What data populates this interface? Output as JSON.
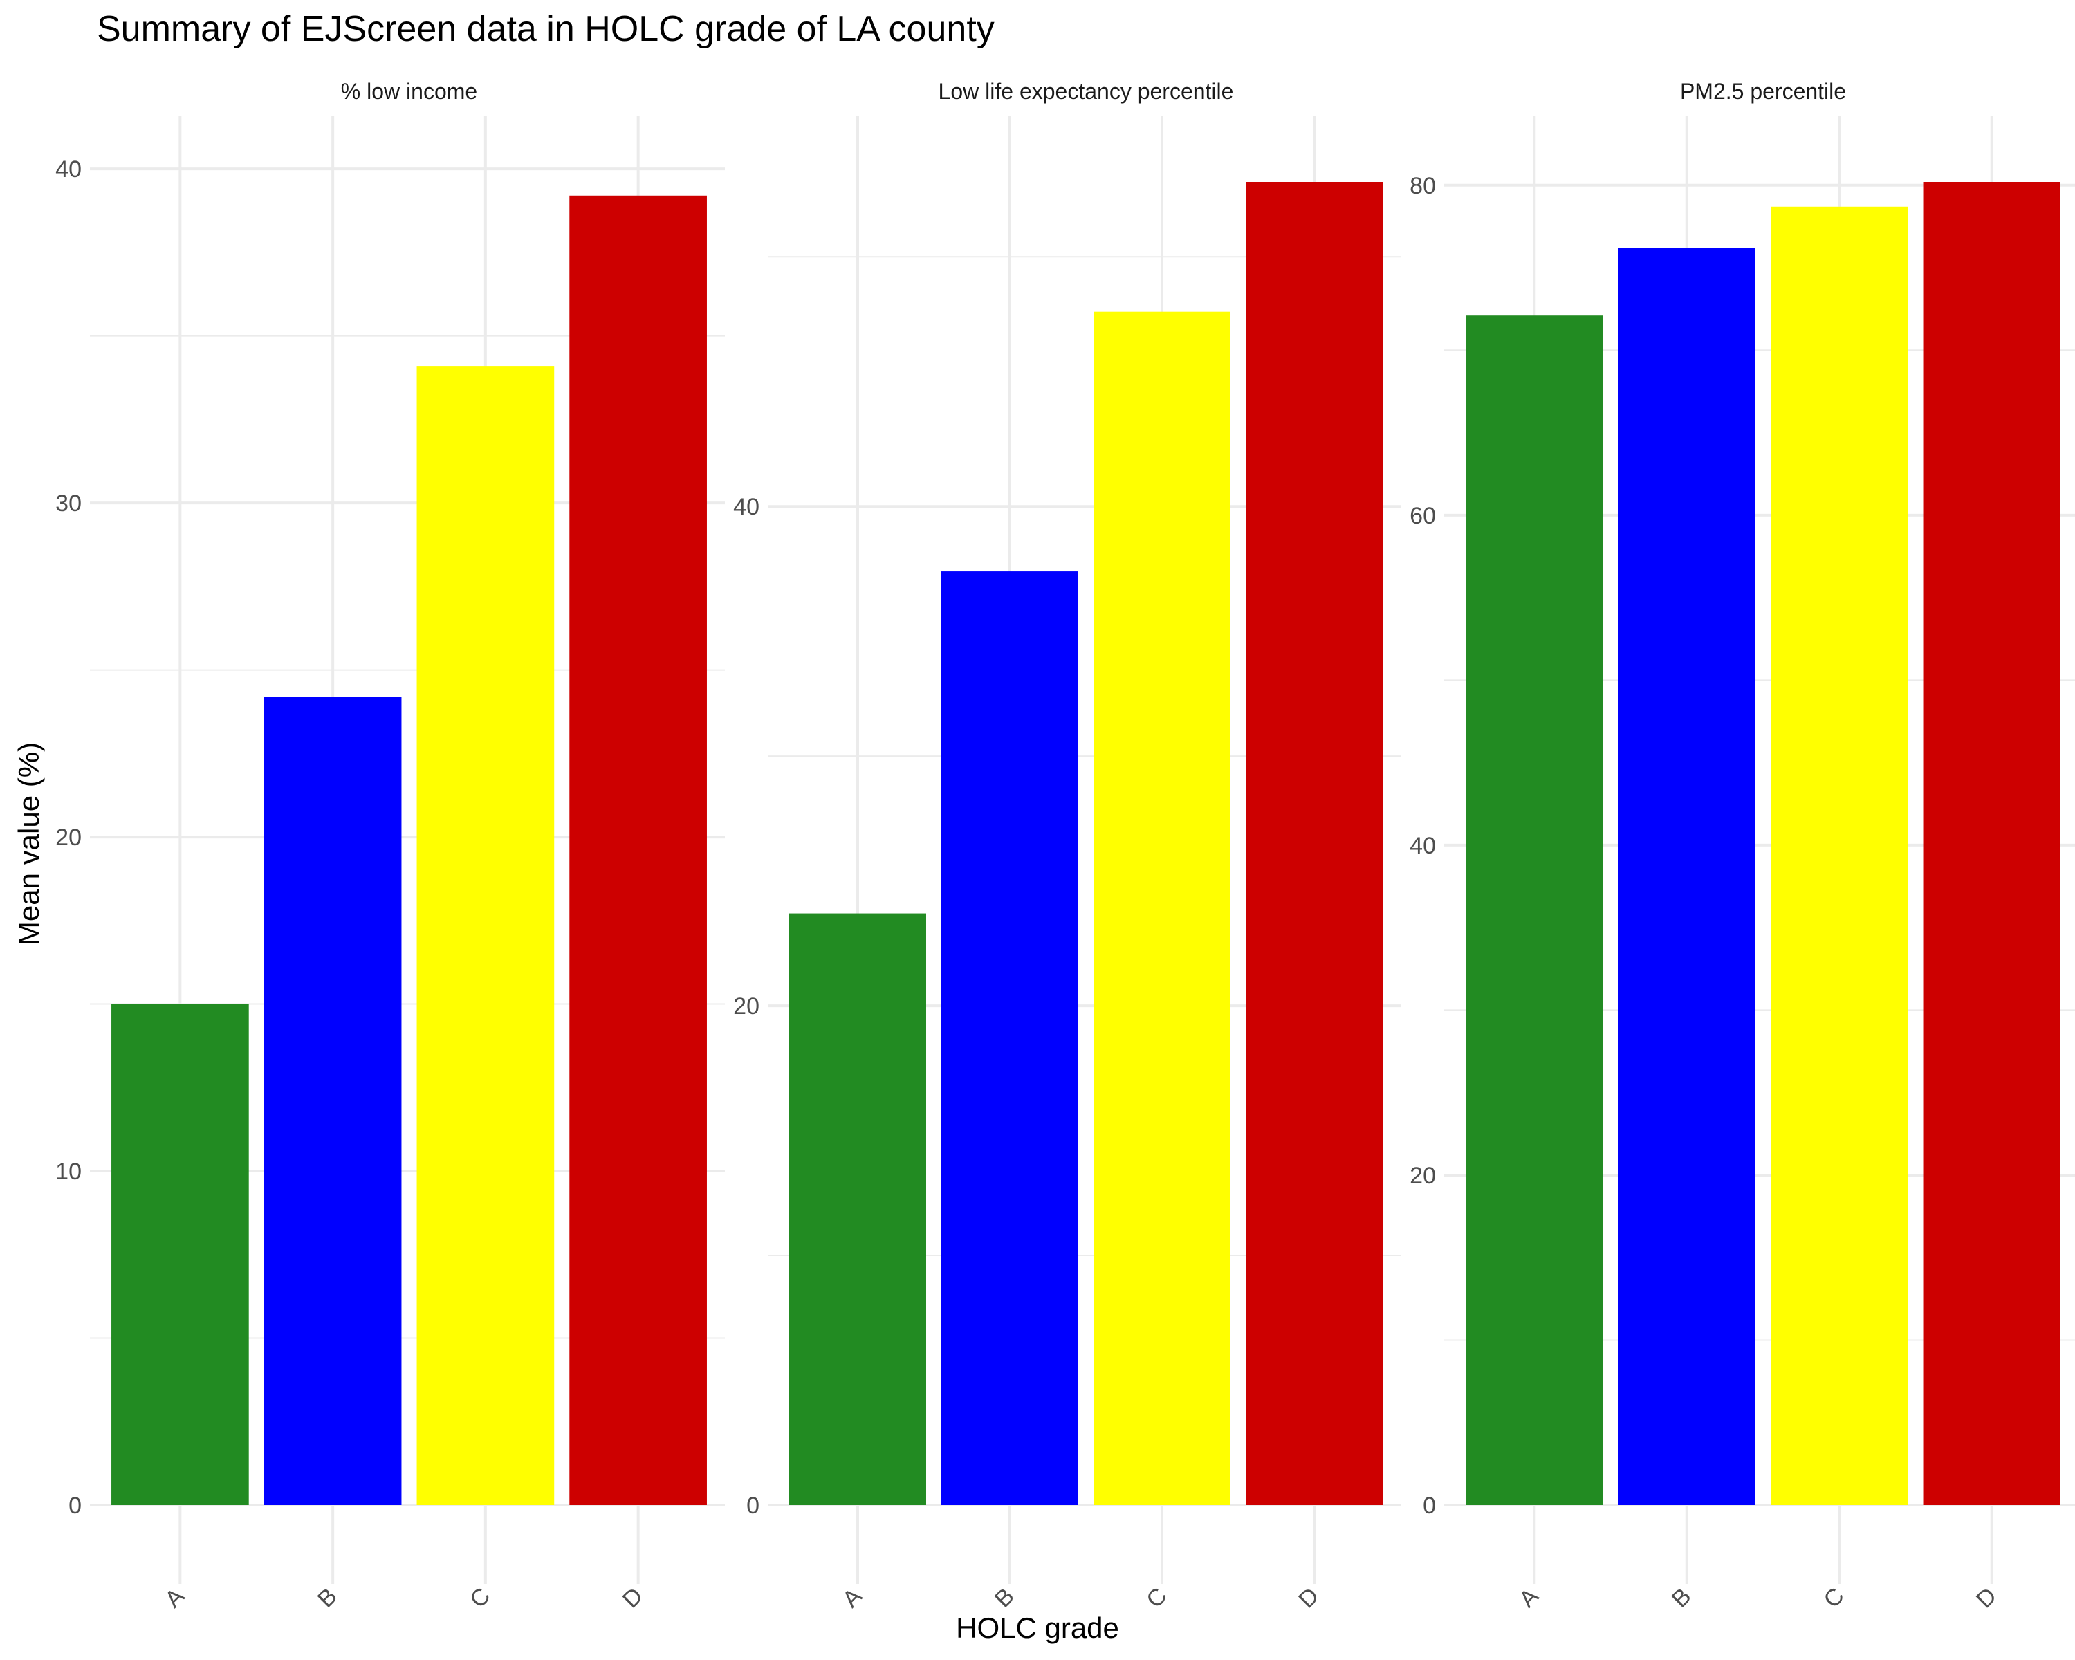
{
  "figure": {
    "title": "Summary of EJScreen data in HOLC grade of LA county",
    "xlabel": "HOLC grade",
    "ylabel": "Mean value (%)"
  },
  "colors": {
    "A": "#228B22",
    "B": "#0000FF",
    "C": "#FFFF00",
    "D": "#CD0000",
    "grid": "#EBEBEB",
    "tick_text": "#4D4D4D"
  },
  "chart_data": [
    {
      "type": "bar",
      "title": "% low income",
      "categories": [
        "A",
        "B",
        "C",
        "D"
      ],
      "values": [
        15.0,
        24.2,
        34.1,
        39.2
      ],
      "ylim": [
        0,
        40.5
      ],
      "yticks": [
        0,
        10,
        20,
        30,
        40
      ],
      "grid": true
    },
    {
      "type": "bar",
      "title": "Low life expectancy percentile",
      "categories": [
        "A",
        "B",
        "C",
        "D"
      ],
      "values": [
        23.7,
        37.4,
        47.8,
        53.0
      ],
      "ylim": [
        0,
        53.0
      ],
      "yticks": [
        0,
        20,
        40
      ],
      "grid": true
    },
    {
      "type": "bar",
      "title": "PM2.5 percentile",
      "categories": [
        "A",
        "B",
        "C",
        "D"
      ],
      "values": [
        72.1,
        76.2,
        78.7,
        80.2
      ],
      "ylim": [
        0,
        80.2
      ],
      "yticks": [
        0,
        20,
        40,
        60,
        80
      ],
      "grid": true
    }
  ]
}
